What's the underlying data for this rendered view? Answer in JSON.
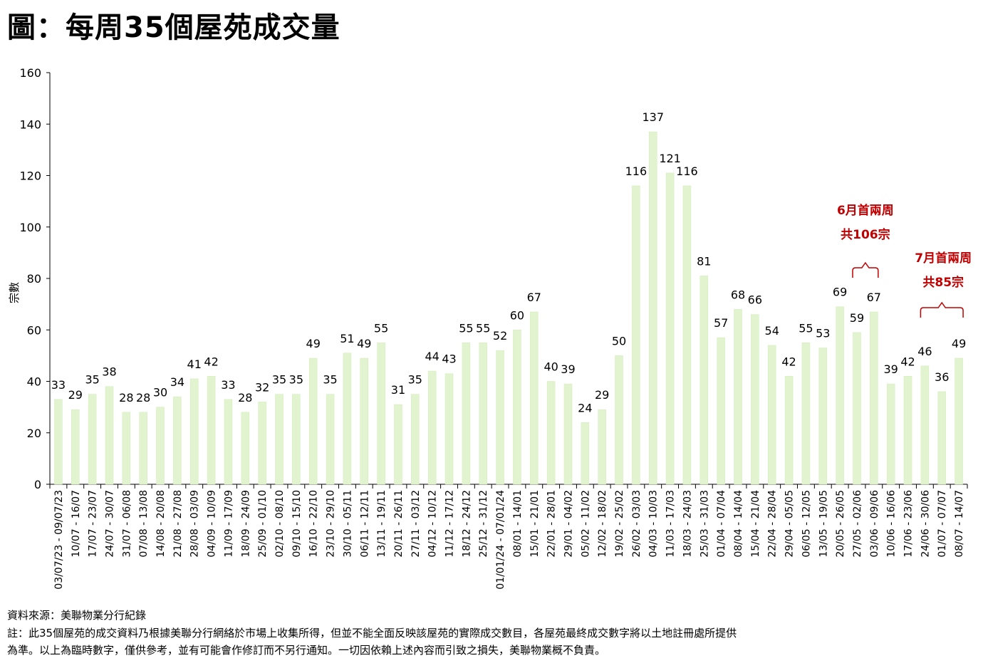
{
  "title": "圖：每周35個屋苑成交量",
  "footnotes": {
    "source": "資料來源：美聯物業分行紀錄",
    "note1": "註：此35個屋苑的成交資料乃根據美聯分行網絡於市場上收集所得，但並不能全面反映該屋苑的實際成交數目，各屋苑最終成交數字將以土地註冊處所提供",
    "note2": "為準。以上為臨時數字，僅供參考，並有可能會作修訂而不另行通知。一切因依賴上述內容而引致之損失，美聯物業概不負責。"
  },
  "colors": {
    "bar": "#e2f4cf",
    "bar_edge": "#d3ecba",
    "annotation": "#c00000"
  },
  "annotations": [
    {
      "line1": "6月首兩周",
      "line2": "共106宗"
    },
    {
      "line1": "7月首兩周",
      "line2": "共85宗"
    }
  ],
  "chart_data": {
    "type": "bar",
    "ylabel": "宗數",
    "xlabel": "",
    "ylim": [
      0,
      160
    ],
    "yticks": [
      0,
      20,
      40,
      60,
      80,
      100,
      120,
      140,
      160
    ],
    "grid": false,
    "categories": [
      "03/07/23 - 09/07/23",
      "10/07 - 16/07",
      "17/07 - 23/07",
      "24/07 - 30/07",
      "31/07 - 06/08",
      "07/08 - 13/08",
      "14/08 - 20/08",
      "21/08 - 27/08",
      "28/08 - 03/09",
      "04/09 - 10/09",
      "11/09 - 17/09",
      "18/09 - 24/09",
      "25/09 - 01/10",
      "02/10 - 08/10",
      "09/10 - 15/10",
      "16/10 - 22/10",
      "23/10 - 29/10",
      "30/10 - 05/11",
      "06/11 - 12/11",
      "13/11 - 19/11",
      "20/11 - 26/11",
      "27/11 - 03/12",
      "04/12 - 10/12",
      "11/12 - 17/12",
      "18/12 - 24/12",
      "25/12 - 31/12",
      "01/01/24 - 07/01/24",
      "08/01 - 14/01",
      "15/01 - 21/01",
      "22/01 - 28/01",
      "29/01 - 04/02",
      "05/02 - 11/02",
      "12/02 - 18/02",
      "19/02 - 25/02",
      "26/02 - 03/03",
      "04/03 - 10/03",
      "11/03 - 17/03",
      "18/03 - 24/03",
      "25/03 - 31/03",
      "01/04 - 07/04",
      "08/04 - 14/04",
      "15/04 - 21/04",
      "22/04 - 28/04",
      "29/04 - 05/05",
      "06/05 - 12/05",
      "13/05 - 19/05",
      "20/05 - 26/05",
      "27/05 - 02/06",
      "03/06 - 09/06",
      "10/06 - 16/06",
      "17/06 - 23/06",
      "24/06 - 30/06",
      "01/07 - 07/07",
      "08/07 - 14/07"
    ],
    "values": [
      33,
      29,
      35,
      38,
      28,
      28,
      30,
      34,
      41,
      42,
      33,
      28,
      32,
      35,
      35,
      49,
      35,
      51,
      49,
      55,
      31,
      35,
      44,
      43,
      55,
      55,
      52,
      60,
      67,
      40,
      39,
      24,
      29,
      50,
      116,
      137,
      121,
      116,
      81,
      57,
      68,
      66,
      54,
      42,
      55,
      53,
      69,
      59,
      67,
      39,
      42,
      46,
      36,
      49
    ]
  }
}
